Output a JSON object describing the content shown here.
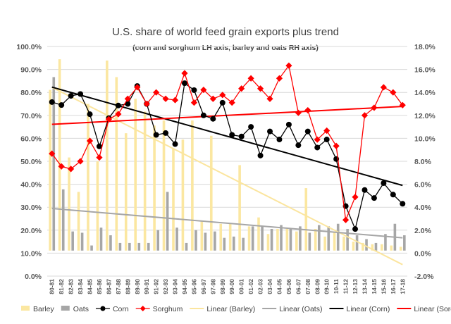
{
  "chart_data": {
    "type": "bar",
    "title": "U.S. share of world feed grain exports plus trend",
    "subtitle": "(corn and sorghum LH axis, barley and oats RH axis)",
    "left_axis": {
      "min": 0,
      "max": 100,
      "step": 10,
      "format": "percent1"
    },
    "right_axis": {
      "min": -2,
      "max": 16,
      "step": 2,
      "format": "percent1"
    },
    "grid": true,
    "legend_position": "bottom",
    "categories": [
      "80-81",
      "81-82",
      "82-83",
      "83-84",
      "84-85",
      "85-86",
      "86-87",
      "87-88",
      "88-89",
      "89-90",
      "90-91",
      "91-92",
      "92-93",
      "93-94",
      "94-95",
      "95-96",
      "96-97",
      "97-98",
      "98-99",
      "99-00",
      "00-01",
      "01-02",
      "02-03",
      "03-04",
      "04-05",
      "05-06",
      "06-07",
      "07-08",
      "08-09",
      "09-10",
      "10-11",
      "11-12",
      "12-13",
      "13-14",
      "14-15",
      "15-16",
      "16-17",
      "17-18"
    ],
    "series": [
      {
        "name": "Barley",
        "type": "bar",
        "axis": "right",
        "color": "#fbe7a1",
        "values": [
          12.6,
          15.0,
          7.3,
          4.6,
          11.5,
          7.0,
          14.9,
          13.6,
          9.2,
          11.9,
          10.9,
          9.8,
          10.2,
          8.0,
          8.7,
          10.2,
          2.3,
          9.0,
          2.1,
          2.1,
          6.7,
          1.9,
          2.6,
          1.3,
          1.7,
          1.7,
          1.5,
          4.9,
          1.7,
          1.1,
          1.5,
          1.1,
          0.7,
          0.6,
          0.5,
          0.5,
          0.4,
          0.3
        ]
      },
      {
        "name": "Oats",
        "type": "bar",
        "axis": "right",
        "color": "#a6a6a6",
        "values": [
          13.6,
          4.8,
          1.5,
          1.4,
          0.4,
          1.8,
          1.2,
          0.6,
          0.6,
          0.6,
          0.6,
          1.6,
          4.6,
          1.8,
          0.6,
          1.6,
          1.4,
          1.5,
          1.0,
          1.1,
          1.0,
          1.9,
          1.9,
          1.7,
          2.0,
          1.7,
          1.9,
          1.4,
          2.0,
          1.9,
          2.1,
          1.7,
          1.2,
          0.9,
          0.6,
          1.3,
          2.1,
          1.2
        ]
      },
      {
        "name": "Corn",
        "type": "line",
        "axis": "left",
        "color": "#000000",
        "marker": "circle",
        "values": [
          75.8,
          74.5,
          78.5,
          79.3,
          70.5,
          56.5,
          68.8,
          74.3,
          75.0,
          82.8,
          75.0,
          61.5,
          62.3,
          57.5,
          84.0,
          81.0,
          70.0,
          68.5,
          75.5,
          61.5,
          60.8,
          65.0,
          52.5,
          63.0,
          59.5,
          66.0,
          57.0,
          63.0,
          56.0,
          59.5,
          51.0,
          30.5,
          20.5,
          37.5,
          34.0,
          40.5,
          35.5,
          31.5
        ]
      },
      {
        "name": "Sorghum",
        "type": "line",
        "axis": "right",
        "color": "#ff0000",
        "marker": "diamond",
        "values": [
          7.6,
          6.6,
          6.4,
          7.0,
          8.6,
          7.3,
          10.3,
          10.7,
          11.9,
          12.8,
          11.5,
          12.4,
          11.9,
          11.8,
          13.9,
          11.6,
          12.6,
          11.9,
          12.2,
          11.6,
          12.7,
          13.5,
          12.7,
          11.9,
          13.5,
          14.5,
          10.8,
          11.0,
          8.7,
          9.4,
          8.2,
          2.4,
          4.2,
          10.6,
          11.2,
          12.8,
          12.4,
          11.4
        ]
      },
      {
        "name": "Linear (Barley)",
        "type": "trend",
        "axis": "right",
        "color": "#fbe59e",
        "start": 12.8,
        "end": -1.1
      },
      {
        "name": "Linear (Oats)",
        "type": "trend",
        "axis": "right",
        "color": "#a6a6a6",
        "start": 3.3,
        "end": 1.0
      },
      {
        "name": "Linear (Corn)",
        "type": "trend",
        "axis": "left",
        "color": "#000000",
        "start": 82.3,
        "end": 39.5
      },
      {
        "name": "Linear (Sorghum)",
        "type": "trend",
        "axis": "right",
        "color": "#ff0000",
        "start": 9.9,
        "end": 11.3
      }
    ]
  }
}
